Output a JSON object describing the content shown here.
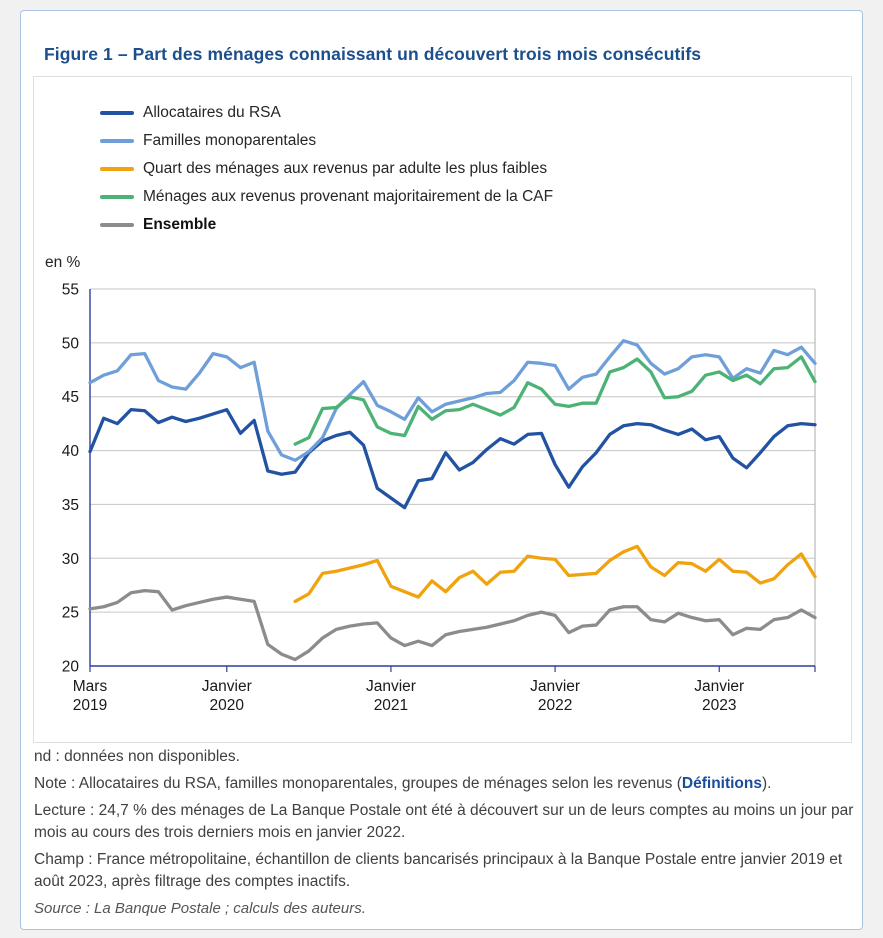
{
  "figure": {
    "title": "Figure 1 – Part des ménages connaissant un découvert trois mois consécutifs",
    "y_axis_unit_label": "en %",
    "notes": {
      "nd": "nd : données non disponibles.",
      "note_prefix": "Note : Allocataires du RSA, familles monoparentales, groupes de ménages selon les revenus (",
      "note_link": "Définitions",
      "note_suffix": ").",
      "lecture": "Lecture : 24,7 % des ménages de La Banque Postale ont été à découvert sur un de leurs comptes au moins un jour par mois au cours des trois derniers mois en janvier 2022.",
      "champ": "Champ : France métropolitaine, échantillon de clients bancarisés principaux à la Banque Postale entre janvier 2019 et août 2023, après filtrage des comptes inactifs.",
      "source": "Source : La Banque Postale ; calculs des auteurs."
    }
  },
  "colors": {
    "title_blue": "#1c4f8c",
    "axis_blue": "#2d3e9e",
    "grid_gray": "#c6c6c6",
    "plot_right_border": "#ababab",
    "tick_text": "#1a1a1a",
    "card_border": "#a9c4e3"
  },
  "chart_data": {
    "type": "line",
    "title": "Part des ménages connaissant un découvert trois mois consécutifs",
    "unit": "en %",
    "frequency": "monthly",
    "x_start": "2019-03",
    "x_end": "2023-08",
    "n_points": 54,
    "ylim": [
      20,
      55
    ],
    "y_ticks": [
      20,
      25,
      30,
      35,
      40,
      45,
      50,
      55
    ],
    "grid": "horizontal",
    "legend_position": "top-left",
    "missing_data_marker": "nd",
    "x_tick_labels": [
      {
        "index": 0,
        "line1": "Mars",
        "line2": "2019"
      },
      {
        "index": 10,
        "line1": "Janvier",
        "line2": "2020"
      },
      {
        "index": 22,
        "line1": "Janvier",
        "line2": "2021"
      },
      {
        "index": 34,
        "line1": "Janvier",
        "line2": "2022"
      },
      {
        "index": 46,
        "line1": "Janvier",
        "line2": "2023"
      }
    ],
    "series": [
      {
        "name": "Allocataires du RSA",
        "color": "#2253a3",
        "bold_in_legend": false,
        "values": [
          39.9,
          43.0,
          42.5,
          43.8,
          43.7,
          42.6,
          43.1,
          42.7,
          43.0,
          43.4,
          43.8,
          41.6,
          42.8,
          38.1,
          37.8,
          38.0,
          39.8,
          40.9,
          41.4,
          41.7,
          40.5,
          36.5,
          35.6,
          34.7,
          37.2,
          37.4,
          39.8,
          38.2,
          38.9,
          40.1,
          41.1,
          40.6,
          41.5,
          41.6,
          38.7,
          36.6,
          38.5,
          39.8,
          41.5,
          42.3,
          42.5,
          42.4,
          41.9,
          41.5,
          42.0,
          41.0,
          41.3,
          39.3,
          38.4,
          39.8,
          41.3,
          42.3,
          42.5,
          42.4
        ]
      },
      {
        "name": "Familles monoparentales",
        "color": "#6f9fd8",
        "bold_in_legend": false,
        "values": [
          46.3,
          47.0,
          47.4,
          48.9,
          49.0,
          46.5,
          45.9,
          45.7,
          47.2,
          49.0,
          48.7,
          47.7,
          48.2,
          41.8,
          39.6,
          39.1,
          39.9,
          41.2,
          43.9,
          45.2,
          46.4,
          44.2,
          43.6,
          42.9,
          44.9,
          43.6,
          44.3,
          44.6,
          44.9,
          45.3,
          45.4,
          46.5,
          48.2,
          48.1,
          47.9,
          45.7,
          46.8,
          47.1,
          48.7,
          50.2,
          49.8,
          48.1,
          47.1,
          47.6,
          48.7,
          48.9,
          48.7,
          46.7,
          47.6,
          47.2,
          49.3,
          48.9,
          49.6,
          48.1
        ]
      },
      {
        "name": "Quart des ménages aux revenus par adulte les plus faibles",
        "color": "#f0a30f",
        "bold_in_legend": false,
        "values": [
          null,
          null,
          null,
          null,
          null,
          null,
          null,
          null,
          null,
          null,
          null,
          null,
          null,
          null,
          null,
          26.0,
          26.7,
          28.6,
          28.8,
          29.1,
          29.4,
          29.8,
          27.4,
          26.9,
          26.4,
          27.9,
          26.9,
          28.2,
          28.8,
          27.6,
          28.7,
          28.8,
          30.2,
          30.0,
          29.9,
          28.4,
          28.5,
          28.6,
          29.8,
          30.6,
          31.1,
          29.2,
          28.4,
          29.6,
          29.5,
          28.8,
          29.9,
          28.8,
          28.7,
          27.7,
          28.1,
          29.4,
          30.4,
          28.3
        ]
      },
      {
        "name": "Ménages aux revenus provenant majoritairement de la CAF",
        "color": "#4db275",
        "bold_in_legend": false,
        "values": [
          null,
          null,
          null,
          null,
          null,
          null,
          null,
          null,
          null,
          null,
          null,
          null,
          null,
          null,
          null,
          40.6,
          41.2,
          43.9,
          44.0,
          45.0,
          44.7,
          42.2,
          41.6,
          41.4,
          44.1,
          42.9,
          43.7,
          43.8,
          44.3,
          43.8,
          43.3,
          44.0,
          46.3,
          45.7,
          44.3,
          44.1,
          44.4,
          44.4,
          47.3,
          47.7,
          48.5,
          47.3,
          44.9,
          45.0,
          45.5,
          47.0,
          47.3,
          46.5,
          47.0,
          46.2,
          47.6,
          47.7,
          48.7,
          46.4
        ]
      },
      {
        "name": "Ensemble",
        "color": "#8c8c8c",
        "bold_in_legend": true,
        "values": [
          25.3,
          25.5,
          25.9,
          26.8,
          27.0,
          26.9,
          25.2,
          25.6,
          25.9,
          26.2,
          26.4,
          26.2,
          26.0,
          22.0,
          21.1,
          20.6,
          21.4,
          22.6,
          23.4,
          23.7,
          23.9,
          24.0,
          22.6,
          21.9,
          22.3,
          21.9,
          22.9,
          23.2,
          23.4,
          23.6,
          23.9,
          24.2,
          24.7,
          25.0,
          24.7,
          23.1,
          23.7,
          23.8,
          25.2,
          25.5,
          25.5,
          24.3,
          24.1,
          24.9,
          24.5,
          24.2,
          24.3,
          22.9,
          23.5,
          23.4,
          24.3,
          24.5,
          25.2,
          24.5
        ]
      }
    ]
  }
}
